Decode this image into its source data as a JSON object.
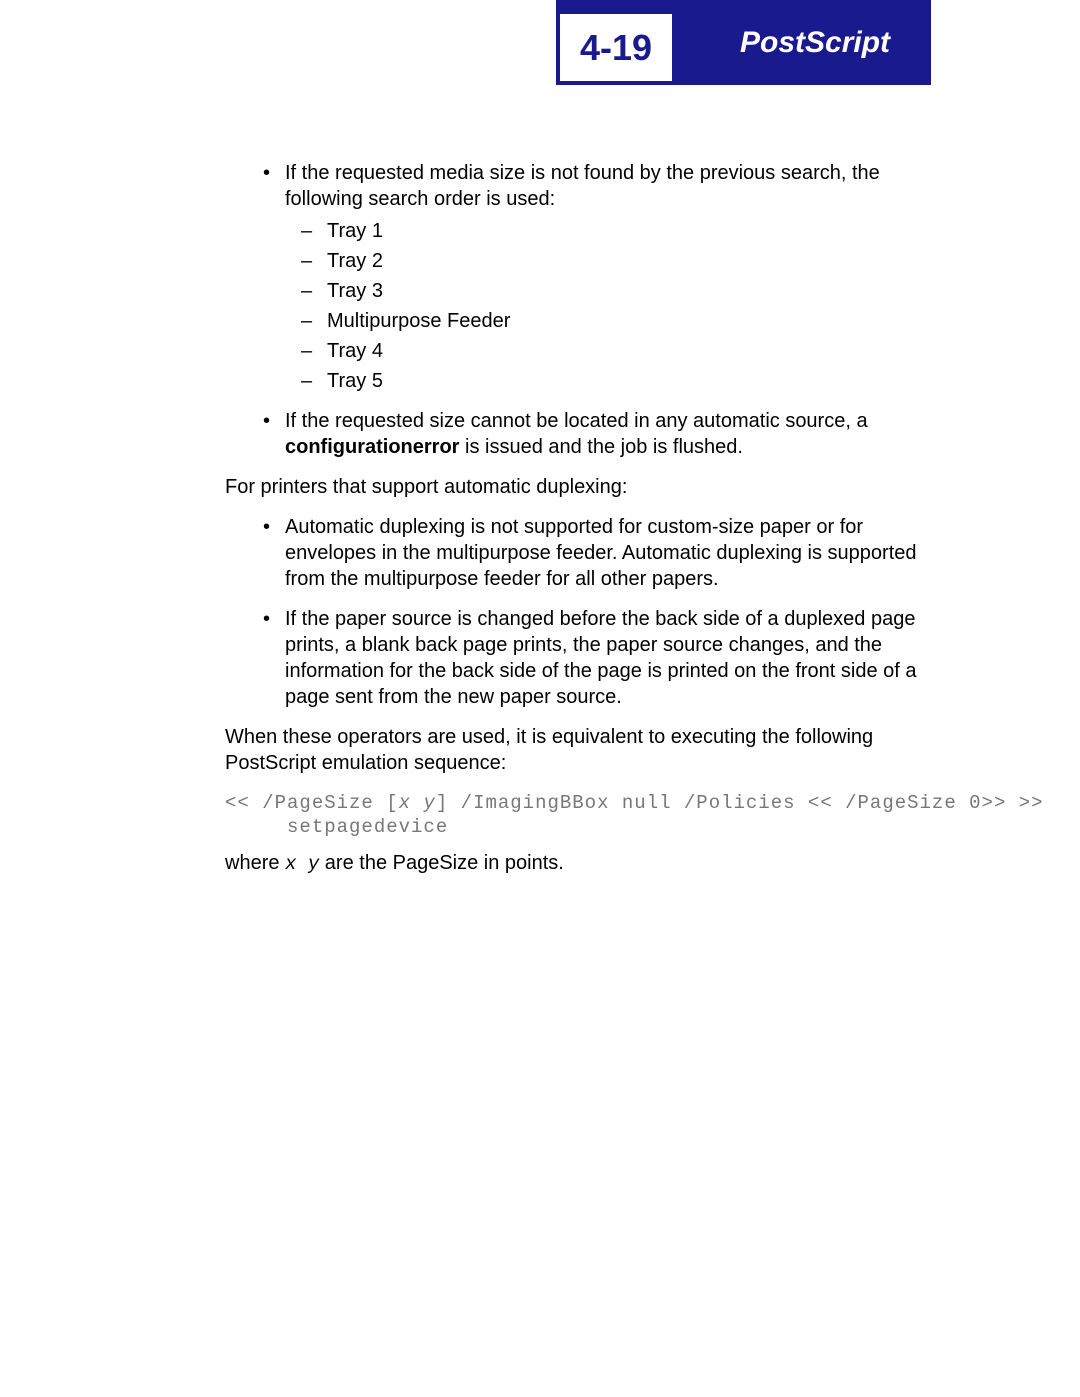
{
  "header": {
    "page_number": "4-19",
    "title": "PostScript",
    "bg_color": "#1a1a8f",
    "text_color": "#ffffff"
  },
  "body": {
    "bullets1": {
      "item1_text": "If the requested media size is not found by the previous search, the following search order is used:",
      "item1_sub": [
        "Tray 1",
        "Tray 2",
        "Tray 3",
        "Multipurpose Feeder",
        "Tray 4",
        "Tray 5"
      ],
      "item2_pre": "If the requested size cannot be located in any automatic source, a ",
      "item2_bold": "configurationerror",
      "item2_post": " is issued and the job is flushed."
    },
    "para1": "For printers that support automatic duplexing:",
    "bullets2": [
      "Automatic duplexing is not supported for custom-size paper or for envelopes in the multipurpose feeder. Automatic duplexing is supported from the multipurpose feeder for all other papers.",
      "If the paper source is changed before the back side of a duplexed page prints, a blank back page prints, the paper source changes, and the information for the back side of the page is printed on the front side of a page sent from the new paper source."
    ],
    "para2": "When these operators are used, it is equivalent to executing the following PostScript emulation sequence:",
    "code": {
      "pre1": "<< /PageSize [",
      "xy": "x y",
      "post1": "] /ImagingBBox null /Policies << /PageSize 0>> >>",
      "line2": "     setpagedevice"
    },
    "where_pre": "where ",
    "where_xy": "x  y",
    "where_post": " are the PageSize in points."
  }
}
